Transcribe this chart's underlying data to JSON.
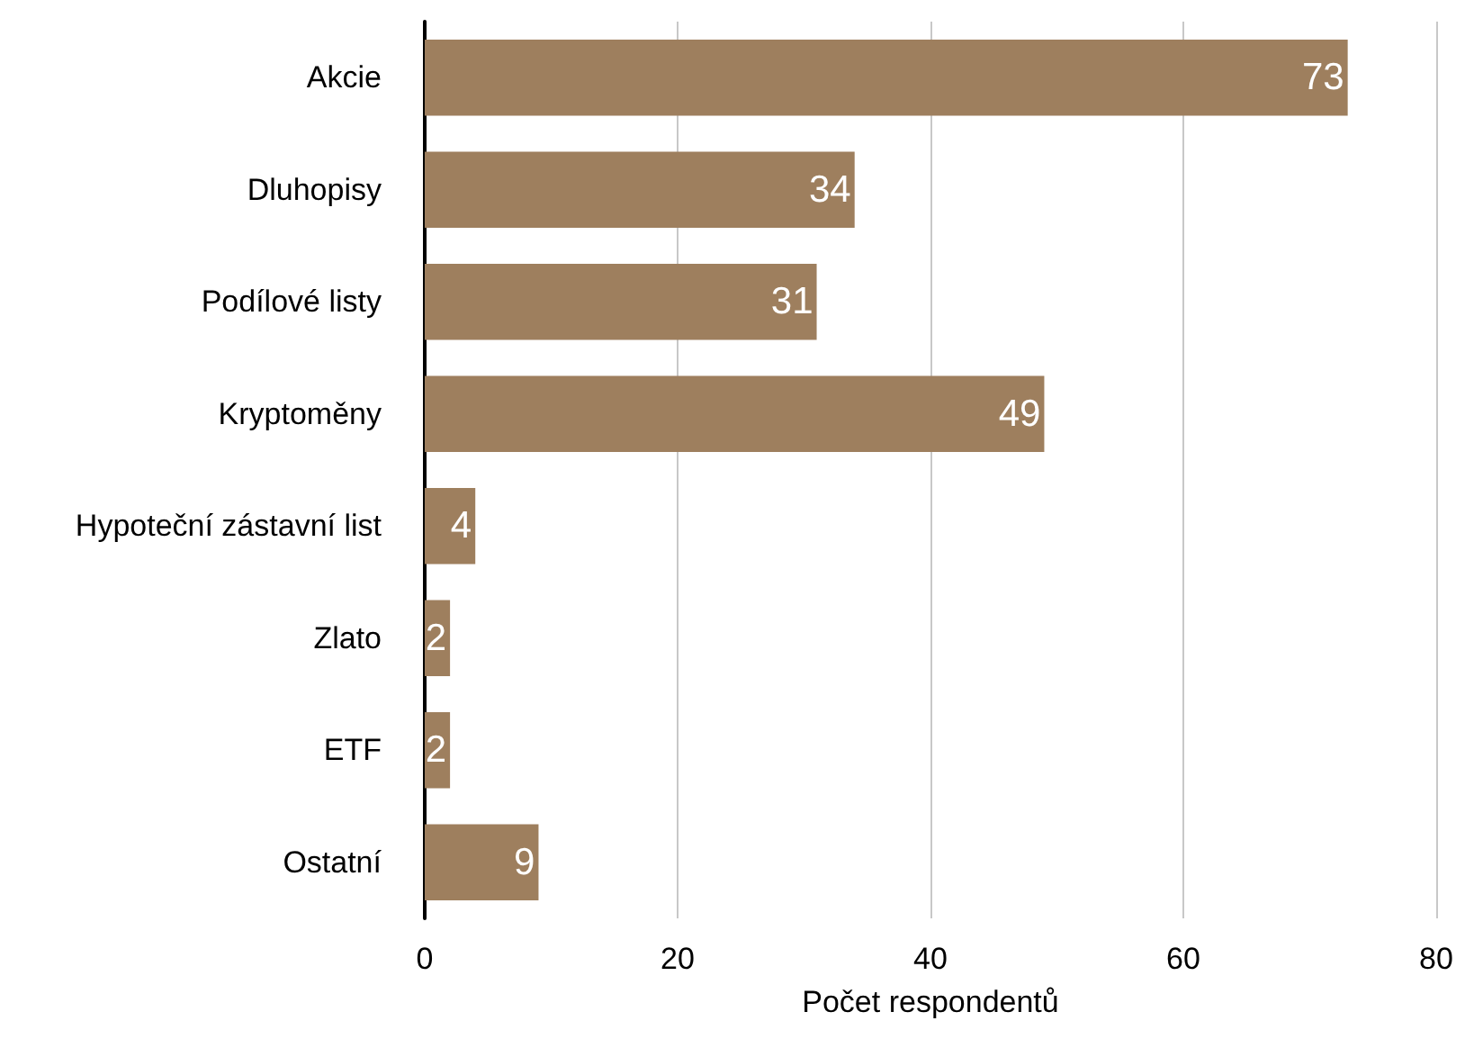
{
  "chart_data": {
    "type": "bar",
    "orientation": "horizontal",
    "xlabel": "Počet respondentů",
    "categories": [
      "Akcie",
      "Dluhopisy",
      "Podílové listy",
      "Kryptoměny",
      "Hypoteční zástavní list",
      "Zlato",
      "ETF",
      "Ostatní"
    ],
    "values": [
      73,
      34,
      31,
      49,
      4,
      2,
      2,
      9
    ],
    "color": "#9e7f5e",
    "xlim": [
      0,
      80
    ],
    "xticks": [
      0,
      20,
      40,
      60,
      80
    ],
    "grid": "x",
    "data_labels": true
  }
}
